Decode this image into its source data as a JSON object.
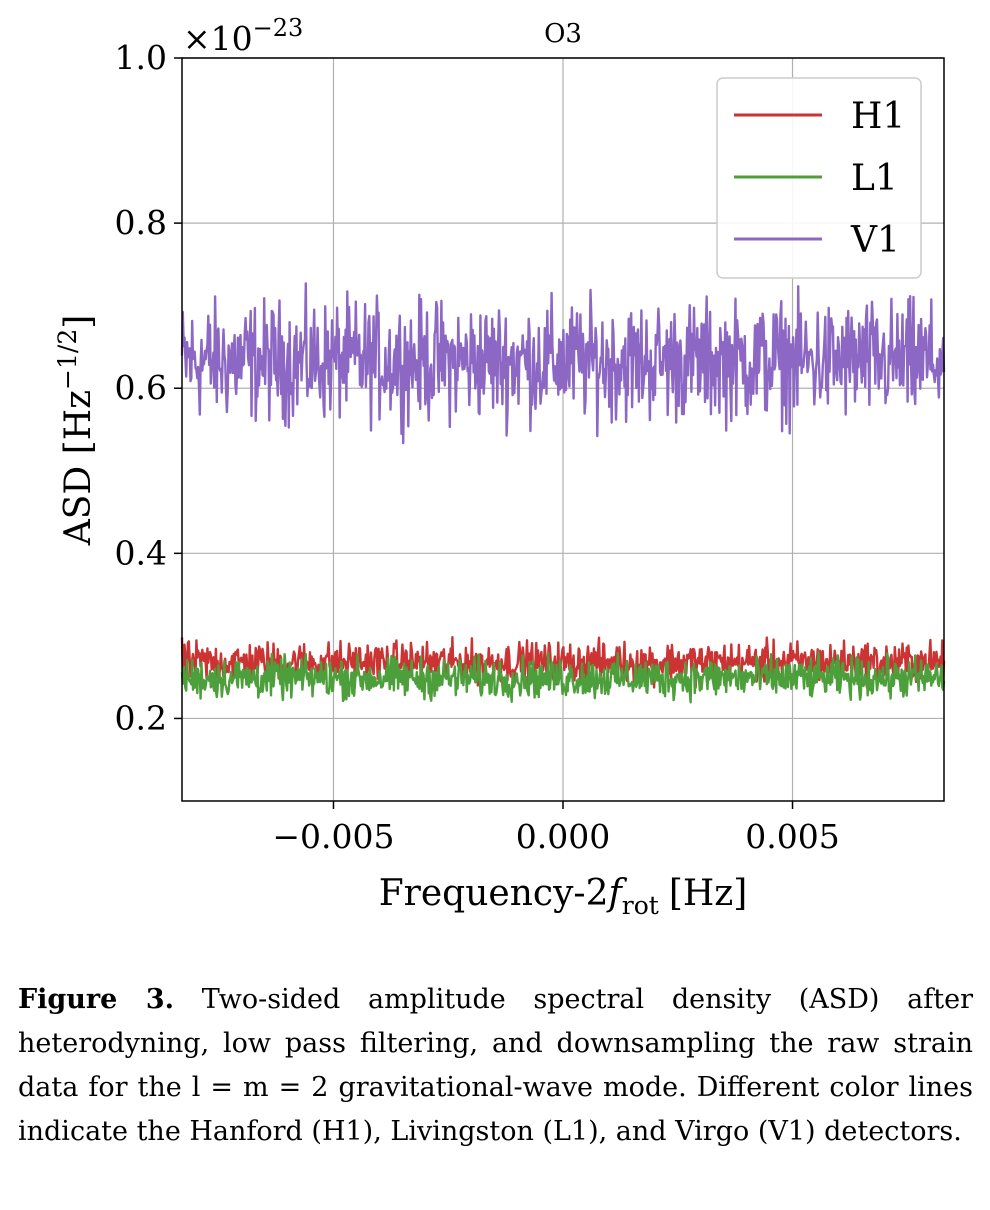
{
  "chart_data": {
    "type": "line",
    "title": "O3",
    "xlabel": "Frequency-2",
    "xlabel_sym": "f",
    "xlabel_sub": "rot",
    "xlabel_unit": "[Hz]",
    "ylabel": "ASD [Hz",
    "ylabel_exp": "−1/2",
    "ylabel_close": "]",
    "offset_base": "×10",
    "offset_exp": "−23",
    "xlim": [
      -0.0083,
      0.0083
    ],
    "ylim": [
      0.1,
      1.0
    ],
    "x_ticks": [
      -0.005,
      0.0,
      0.005
    ],
    "x_tick_labels": [
      "−0.005",
      "0.000",
      "0.005"
    ],
    "y_ticks": [
      0.2,
      0.4,
      0.6,
      0.8,
      1.0
    ],
    "y_tick_labels": [
      "0.2",
      "0.4",
      "0.6",
      "0.8",
      "1.0"
    ],
    "grid": true,
    "legend": "top-right",
    "series": [
      {
        "name": "H1",
        "color": "#cc3333",
        "mean": 0.268,
        "spread": 0.012
      },
      {
        "name": "L1",
        "color": "#4c9f3a",
        "mean": 0.249,
        "spread": 0.012
      },
      {
        "name": "V1",
        "color": "#8c67c4",
        "mean": 0.633,
        "spread": 0.035
      }
    ]
  },
  "caption": {
    "label": "Figure 3.",
    "text": "Two-sided amplitude spectral density (ASD) after heterodyning, low pass filtering, and downsampling the raw strain data for the l = m = 2 gravitational-wave mode. Different color lines indicate the Hanford (H1), Livingston (L1), and Virgo (V1) detectors."
  }
}
